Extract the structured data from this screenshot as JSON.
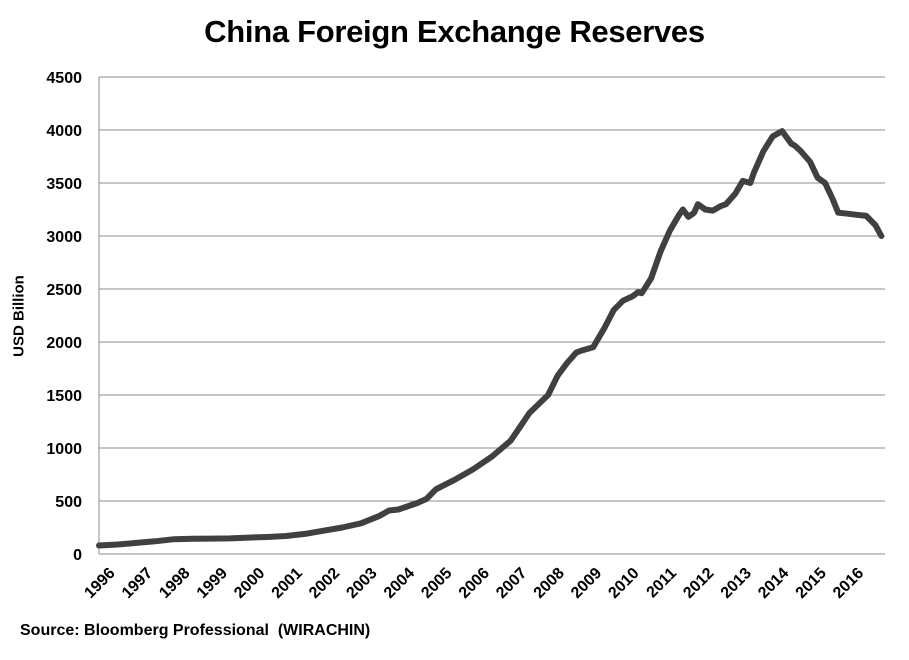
{
  "chart_data": {
    "type": "line",
    "title": "China Foreign Exchange Reserves",
    "xlabel": "",
    "ylabel": "USD Billion",
    "source": "Source: Bloomberg Professional  (WIRACHIN)",
    "ylim": [
      0,
      4500
    ],
    "yticks": [
      0,
      500,
      1000,
      1500,
      2000,
      2500,
      3000,
      3500,
      4000,
      4500
    ],
    "xlim": [
      1996,
      2017.0
    ],
    "xticks": [
      "1996",
      "1997",
      "1998",
      "1999",
      "2000",
      "2001",
      "2002",
      "2003",
      "2004",
      "2005",
      "2006",
      "2007",
      "2008",
      "2009",
      "2010",
      "2011",
      "2012",
      "2013",
      "2014",
      "2015",
      "2016"
    ],
    "grid": true,
    "line_color": "#404040",
    "series": [
      {
        "x": [
          1996.0,
          1996.5,
          1997.0,
          1997.5,
          1998.0,
          1998.5,
          1999.0,
          1999.5,
          2000.0,
          2000.5,
          2001.0,
          2001.5,
          2002.0,
          2002.5,
          2003.0,
          2003.5,
          2003.75,
          2004.0,
          2004.5,
          2004.75,
          2005.0,
          2005.5,
          2006.0,
          2006.5,
          2007.0,
          2007.25,
          2007.5,
          2008.0,
          2008.25,
          2008.5,
          2008.75,
          2008.9,
          2009.2,
          2009.5,
          2009.75,
          2010.0,
          2010.25,
          2010.4,
          2010.5,
          2010.75,
          2011.0,
          2011.25,
          2011.5,
          2011.6,
          2011.75,
          2011.9,
          2012.0,
          2012.2,
          2012.4,
          2012.6,
          2012.75,
          2013.0,
          2013.2,
          2013.4,
          2013.5,
          2013.75,
          2014.0,
          2014.25,
          2014.5,
          2014.6,
          2014.75,
          2015.0,
          2015.2,
          2015.4,
          2015.6,
          2015.75,
          2016.0,
          2016.25,
          2016.5,
          2016.75,
          2016.9
        ],
        "y": [
          80,
          90,
          105,
          120,
          140,
          143,
          145,
          147,
          155,
          160,
          170,
          190,
          220,
          250,
          290,
          360,
          410,
          420,
          480,
          520,
          610,
          700,
          800,
          920,
          1070,
          1200,
          1330,
          1500,
          1680,
          1800,
          1900,
          1920,
          1950,
          2130,
          2300,
          2390,
          2430,
          2470,
          2460,
          2600,
          2850,
          3050,
          3200,
          3250,
          3180,
          3220,
          3300,
          3250,
          3240,
          3280,
          3300,
          3400,
          3520,
          3500,
          3600,
          3800,
          3940,
          3990,
          3870,
          3850,
          3800,
          3700,
          3550,
          3500,
          3350,
          3220,
          3210,
          3200,
          3190,
          3100,
          3000
        ]
      }
    ]
  }
}
